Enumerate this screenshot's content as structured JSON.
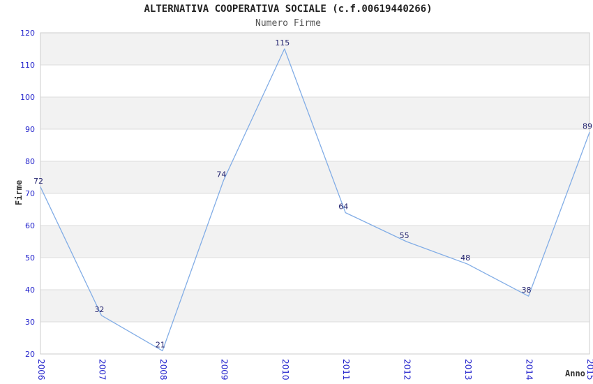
{
  "chart_data": {
    "type": "line",
    "title": "ALTERNATIVA COOPERATIVA SOCIALE (c.f.00619440266)",
    "subtitle": "Numero Firme",
    "xlabel": "Anno",
    "ylabel": "Firme",
    "categories": [
      "2006",
      "2007",
      "2008",
      "2009",
      "2010",
      "2011",
      "2012",
      "2013",
      "2014",
      "2015"
    ],
    "series": [
      {
        "name": "Numero Firme",
        "values": [
          72,
          32,
          21,
          74,
          115,
          64,
          55,
          48,
          38,
          89
        ]
      }
    ],
    "point_labels": [
      "72",
      "32",
      "21",
      "74",
      "115",
      "64",
      "55",
      "48",
      "38",
      "89"
    ],
    "ylim": [
      20,
      120
    ],
    "yticks": [
      20,
      30,
      40,
      50,
      60,
      70,
      80,
      90,
      100,
      110,
      120
    ],
    "ytick_step": 10,
    "grid": "horizontal-bands",
    "legend": "none",
    "x_tick_rotation_deg": 90,
    "colors": {
      "line": "#82ade6",
      "band": "#f2f2f2",
      "grid_line": "#dcdcdc",
      "plot_border": "#cccccc",
      "tick_label": "#2424cc",
      "point_label": "#22226e",
      "title": "#222222",
      "subtitle": "#555555",
      "axis_label": "#333333",
      "background": "#ffffff"
    }
  }
}
